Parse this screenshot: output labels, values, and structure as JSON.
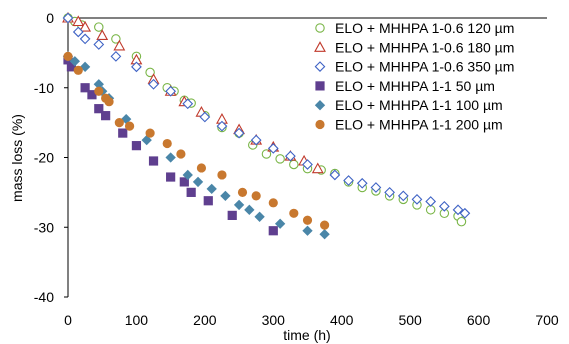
{
  "chart_data": {
    "type": "scatter",
    "title": "",
    "xlabel": "time (h)",
    "ylabel": "mass loss (%)",
    "xlim": [
      0,
      700
    ],
    "ylim": [
      -40,
      0
    ],
    "xticks": [
      0,
      100,
      200,
      300,
      400,
      500,
      600,
      700
    ],
    "yticks": [
      0,
      -10,
      -20,
      -30,
      -40
    ],
    "grid": false,
    "legend_position": "top-right",
    "series": [
      {
        "name": "ELO + MHHPA 1-0.6 120 µm",
        "marker": "circle-open",
        "color": "#7ab648",
        "points": [
          [
            0,
            0
          ],
          [
            10,
            -0.5
          ],
          [
            20,
            -1
          ],
          [
            45,
            -1.3
          ],
          [
            70,
            -3
          ],
          [
            100,
            -5.5
          ],
          [
            120,
            -7.8
          ],
          [
            145,
            -10
          ],
          [
            155,
            -10.5
          ],
          [
            170,
            -11.8
          ],
          [
            180,
            -12.2
          ],
          [
            200,
            -14
          ],
          [
            225,
            -15.7
          ],
          [
            250,
            -16.5
          ],
          [
            270,
            -18.2
          ],
          [
            290,
            -19.5
          ],
          [
            310,
            -20.2
          ],
          [
            330,
            -21
          ],
          [
            350,
            -21.6
          ],
          [
            370,
            -21.8
          ],
          [
            390,
            -22.3
          ],
          [
            410,
            -23.5
          ],
          [
            430,
            -24.3
          ],
          [
            450,
            -24.8
          ],
          [
            470,
            -25.5
          ],
          [
            490,
            -26
          ],
          [
            510,
            -26.8
          ],
          [
            530,
            -27.5
          ],
          [
            550,
            -28
          ],
          [
            570,
            -28.4
          ],
          [
            575,
            -29.2
          ]
        ]
      },
      {
        "name": "ELO + MHHPA 1-0.6 180 µm",
        "marker": "triangle-open",
        "color": "#c0392b",
        "points": [
          [
            0,
            0
          ],
          [
            15,
            -0.5
          ],
          [
            25,
            -1.3
          ],
          [
            50,
            -2.5
          ],
          [
            75,
            -4
          ],
          [
            100,
            -6
          ],
          [
            125,
            -8.8
          ],
          [
            150,
            -10.5
          ],
          [
            170,
            -12
          ],
          [
            195,
            -13.5
          ],
          [
            225,
            -14.5
          ],
          [
            250,
            -16
          ],
          [
            275,
            -17.5
          ],
          [
            300,
            -18.5
          ],
          [
            325,
            -19.8
          ],
          [
            345,
            -20.5
          ],
          [
            365,
            -21.6
          ]
        ]
      },
      {
        "name": "ELO + MHHPA 1-0.6 350 µm",
        "marker": "diamond-open",
        "color": "#3f63c5",
        "points": [
          [
            0,
            0
          ],
          [
            15,
            -2
          ],
          [
            25,
            -3
          ],
          [
            45,
            -3.8
          ],
          [
            70,
            -5.5
          ],
          [
            100,
            -7
          ],
          [
            125,
            -9.5
          ],
          [
            150,
            -10.5
          ],
          [
            175,
            -12.3
          ],
          [
            200,
            -14.2
          ],
          [
            225,
            -15.5
          ],
          [
            250,
            -16.5
          ],
          [
            275,
            -17.5
          ],
          [
            300,
            -18.7
          ],
          [
            325,
            -19.8
          ],
          [
            350,
            -21
          ],
          [
            390,
            -22.5
          ],
          [
            410,
            -23.3
          ],
          [
            430,
            -23.7
          ],
          [
            450,
            -24.3
          ],
          [
            470,
            -25
          ],
          [
            490,
            -25.5
          ],
          [
            510,
            -26
          ],
          [
            530,
            -26.3
          ],
          [
            550,
            -27
          ],
          [
            570,
            -27.5
          ],
          [
            580,
            -28
          ]
        ]
      },
      {
        "name": "ELO + MHHPA 1-1 50 µm",
        "marker": "square-filled",
        "color": "#5f3f8f",
        "points": [
          [
            0,
            -6
          ],
          [
            5,
            -7
          ],
          [
            25,
            -10
          ],
          [
            35,
            -11
          ],
          [
            45,
            -13
          ],
          [
            55,
            -14
          ],
          [
            80,
            -16.5
          ],
          [
            100,
            -18.3
          ],
          [
            125,
            -20.5
          ],
          [
            150,
            -22.8
          ],
          [
            170,
            -23.5
          ],
          [
            180,
            -25
          ],
          [
            205,
            -26.2
          ],
          [
            240,
            -28.3
          ],
          [
            300,
            -30.5
          ]
        ]
      },
      {
        "name": "ELO + MHHPA 1-1 100 µm",
        "marker": "diamond-filled",
        "color": "#4a86a8",
        "points": [
          [
            0,
            -5.5
          ],
          [
            10,
            -6.2
          ],
          [
            25,
            -7
          ],
          [
            45,
            -9.5
          ],
          [
            50,
            -10.5
          ],
          [
            60,
            -11.5
          ],
          [
            85,
            -14.5
          ],
          [
            115,
            -17.5
          ],
          [
            150,
            -20
          ],
          [
            175,
            -22.5
          ],
          [
            190,
            -23.5
          ],
          [
            210,
            -24.5
          ],
          [
            230,
            -25.5
          ],
          [
            250,
            -26.8
          ],
          [
            265,
            -27.5
          ],
          [
            280,
            -28.5
          ],
          [
            310,
            -29.5
          ],
          [
            350,
            -30.5
          ],
          [
            375,
            -31
          ]
        ]
      },
      {
        "name": "ELO + MHHPA 1-1 200 µm",
        "marker": "circle-filled",
        "color": "#c8782f",
        "points": [
          [
            0,
            -5.5
          ],
          [
            15,
            -7.5
          ],
          [
            45,
            -10.5
          ],
          [
            55,
            -11.5
          ],
          [
            60,
            -12
          ],
          [
            75,
            -15
          ],
          [
            90,
            -15.5
          ],
          [
            120,
            -16.5
          ],
          [
            145,
            -18
          ],
          [
            165,
            -19.5
          ],
          [
            195,
            -21.5
          ],
          [
            225,
            -22.5
          ],
          [
            255,
            -25
          ],
          [
            275,
            -25.5
          ],
          [
            300,
            -26.5
          ],
          [
            330,
            -28
          ],
          [
            350,
            -29
          ],
          [
            375,
            -29.7
          ]
        ]
      }
    ]
  }
}
